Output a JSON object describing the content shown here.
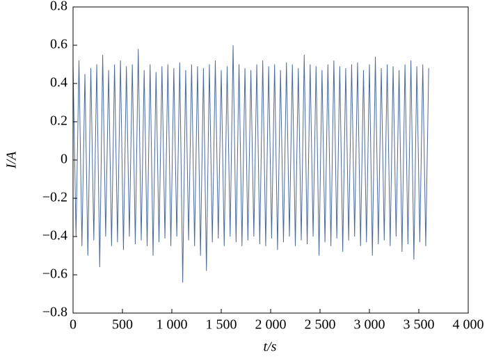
{
  "chart_data": {
    "type": "line",
    "x_label": "t/s",
    "y_label": "I/A",
    "color": "#4a6a9c",
    "x": [
      0,
      30,
      60,
      90,
      120,
      150,
      180,
      210,
      240,
      270,
      300,
      330,
      360,
      390,
      420,
      450,
      480,
      510,
      540,
      570,
      600,
      630,
      660,
      690,
      720,
      750,
      780,
      810,
      840,
      870,
      900,
      930,
      960,
      990,
      1020,
      1050,
      1080,
      1110,
      1140,
      1170,
      1200,
      1230,
      1260,
      1290,
      1320,
      1350,
      1380,
      1410,
      1440,
      1470,
      1500,
      1530,
      1560,
      1590,
      1620,
      1650,
      1680,
      1710,
      1740,
      1770,
      1800,
      1830,
      1860,
      1890,
      1920,
      1950,
      1980,
      2010,
      2040,
      2070,
      2100,
      2130,
      2160,
      2190,
      2220,
      2250,
      2280,
      2310,
      2340,
      2370,
      2400,
      2430,
      2460,
      2490,
      2520,
      2550,
      2580,
      2610,
      2640,
      2670,
      2700,
      2730,
      2760,
      2790,
      2820,
      2850,
      2880,
      2910,
      2940,
      2970,
      3000,
      3030,
      3060,
      3090,
      3120,
      3150,
      3180,
      3210,
      3240,
      3270,
      3300,
      3330,
      3360,
      3390,
      3420,
      3450,
      3480,
      3510,
      3540,
      3570,
      3600
    ],
    "values": [
      0.5,
      -0.4,
      0.52,
      -0.45,
      0.45,
      -0.5,
      0.48,
      -0.42,
      0.5,
      -0.56,
      0.55,
      -0.4,
      0.47,
      -0.45,
      0.5,
      -0.43,
      0.52,
      -0.47,
      0.49,
      -0.4,
      0.5,
      -0.44,
      0.58,
      -0.42,
      0.47,
      -0.45,
      0.5,
      -0.5,
      0.46,
      -0.43,
      0.49,
      -0.41,
      0.5,
      -0.45,
      0.48,
      -0.4,
      0.51,
      -0.64,
      0.47,
      -0.42,
      0.5,
      -0.45,
      0.49,
      -0.5,
      0.48,
      -0.58,
      0.5,
      -0.43,
      0.52,
      -0.41,
      0.47,
      -0.45,
      0.49,
      -0.4,
      0.6,
      -0.43,
      0.5,
      -0.45,
      0.48,
      -0.42,
      0.47,
      -0.4,
      0.5,
      -0.44,
      0.52,
      -0.45,
      0.49,
      -0.41,
      0.5,
      -0.47,
      0.47,
      -0.43,
      0.51,
      -0.4,
      0.5,
      -0.45,
      0.48,
      -0.42,
      0.55,
      -0.44,
      0.5,
      -0.4,
      0.49,
      -0.5,
      0.47,
      -0.43,
      0.5,
      -0.45,
      0.52,
      -0.41,
      0.49,
      -0.48,
      0.48,
      -0.42,
      0.5,
      -0.4,
      0.51,
      -0.45,
      0.47,
      -0.43,
      0.5,
      -0.5,
      0.54,
      -0.44,
      0.48,
      -0.42,
      0.5,
      -0.45,
      0.49,
      -0.4,
      0.47,
      -0.48,
      0.5,
      -0.44,
      0.52,
      -0.52,
      0.49,
      -0.43,
      0.5,
      -0.45,
      0.48
    ],
    "xlim": [
      0,
      4000
    ],
    "xticks": [
      0,
      500,
      {
        "value": 1000,
        "label": "1 000"
      },
      {
        "value": 1500,
        "label": "1 500"
      },
      {
        "value": 2000,
        "label": "2 000"
      },
      {
        "value": 2500,
        "label": "2 500"
      },
      {
        "value": 3000,
        "label": "3 000"
      },
      {
        "value": 3500,
        "label": "3 500"
      },
      {
        "value": 4000,
        "label": "4 000"
      }
    ],
    "ylim": [
      -0.8,
      0.8
    ],
    "yticks": [
      {
        "value": -0.8,
        "label": "−0.8"
      },
      {
        "value": -0.6,
        "label": "−0.6"
      },
      {
        "value": -0.4,
        "label": "−0.4"
      },
      {
        "value": -0.2,
        "label": "−0.2"
      },
      0,
      0.2,
      0.4,
      0.6,
      0.8
    ]
  }
}
